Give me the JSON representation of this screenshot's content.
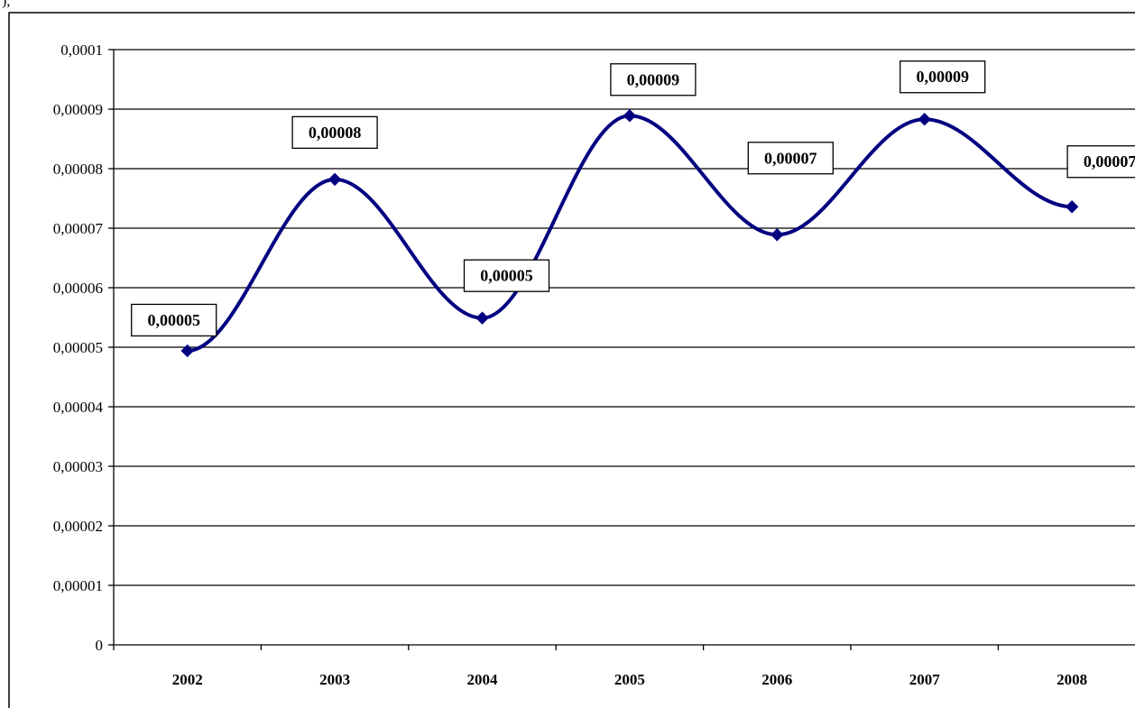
{
  "top_fragment": "),",
  "chart_data": {
    "type": "line",
    "title": "",
    "xlabel": "",
    "ylabel": "",
    "categories": [
      "2002",
      "2003",
      "2004",
      "2005",
      "2006",
      "2007",
      "2008"
    ],
    "series": [
      {
        "values": [
          4.94e-05,
          7.82e-05,
          5.49e-05,
          8.89e-05,
          6.89e-05,
          8.83e-05,
          7.36e-05
        ],
        "data_labels": [
          "0,00005",
          "0,00008",
          "0,00005",
          "0,00009",
          "0,00007",
          "0,00009",
          "0,00007"
        ],
        "color": "#000080",
        "smooth": true,
        "marker": "diamond"
      }
    ],
    "ylim": [
      0,
      0.0001
    ],
    "yticks": [
      0,
      1e-05,
      2e-05,
      3e-05,
      4e-05,
      5e-05,
      6e-05,
      7e-05,
      8e-05,
      9e-05,
      0.0001
    ],
    "ytick_labels": [
      "0",
      "0,00001",
      "0,00002",
      "0,00003",
      "0,00004",
      "0,00005",
      "0,00006",
      "0,00007",
      "0,00008",
      "0,00009",
      "0,0001"
    ],
    "grid": true,
    "legend": "none"
  }
}
